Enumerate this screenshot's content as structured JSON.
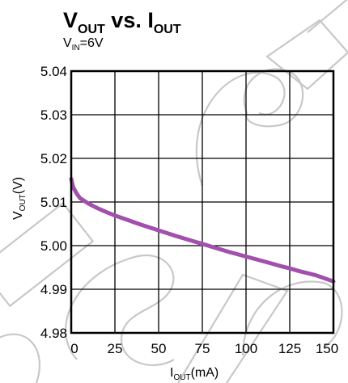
{
  "chart_data": {
    "type": "line",
    "title": {
      "y_var": "V",
      "y_sub": "OUT",
      "sep": " vs. ",
      "x_var": "I",
      "x_sub": "OUT"
    },
    "subtitle": {
      "var": "V",
      "sub": "IN",
      "rest": "=6V"
    },
    "ylabel": {
      "var": "V",
      "sub": "OUT",
      "rest": "(V)"
    },
    "xlabel": {
      "var": "I",
      "sub": "OUT",
      "rest": "(mA)"
    },
    "xlim": [
      0,
      150
    ],
    "ylim": [
      4.98,
      5.04
    ],
    "xticks": [
      "0",
      "25",
      "50",
      "75",
      "100",
      "125",
      "150"
    ],
    "yticks": [
      "4.98",
      "4.99",
      "5.00",
      "5.01",
      "5.02",
      "5.03",
      "5.04"
    ],
    "grid": true,
    "series": [
      {
        "color": "#a24fad",
        "x": [
          0,
          1,
          3,
          5,
          10,
          15,
          20,
          25,
          30,
          40,
          50,
          60,
          70,
          75,
          80,
          90,
          100,
          110,
          120,
          125,
          130,
          140,
          150
        ],
        "y": [
          5.0153,
          5.0135,
          5.012,
          5.0109,
          5.0096,
          5.0086,
          5.0077,
          5.0069,
          5.0062,
          5.0048,
          5.0035,
          5.0022,
          5.001,
          5.0004,
          4.9998,
          4.9986,
          4.9975,
          4.9964,
          4.9953,
          4.9948,
          4.9942,
          4.9932,
          4.9918
        ]
      }
    ]
  }
}
